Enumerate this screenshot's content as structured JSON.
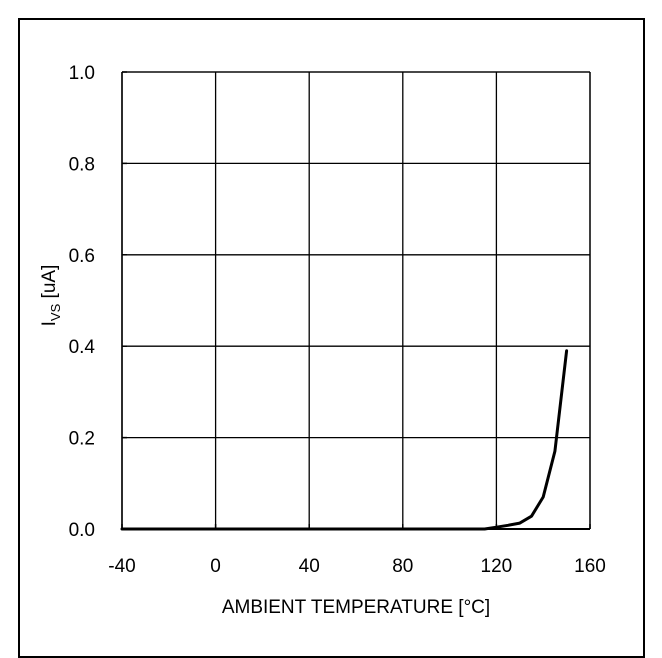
{
  "chart_data": {
    "type": "line",
    "xlabel": "AMBIENT TEMPERATURE [°C]",
    "ylabel_main": "I",
    "ylabel_sub": "VS",
    "ylabel_unit": " [uA]",
    "xlim": [
      -40,
      160
    ],
    "ylim": [
      0,
      1.0
    ],
    "x_ticks": [
      -40,
      0,
      40,
      80,
      120,
      160
    ],
    "x_tick_labels": [
      "-40",
      "0",
      "40",
      "80",
      "120",
      "160"
    ],
    "y_ticks": [
      0,
      0.2,
      0.4,
      0.6,
      0.8,
      1.0
    ],
    "y_tick_labels": [
      "0.0",
      "0.2",
      "0.4",
      "0.6",
      "0.8",
      "1.0"
    ],
    "grid": true,
    "series": [
      {
        "x": [
          -40,
          0,
          40,
          80,
          110,
          115,
          120,
          125,
          130,
          135,
          140,
          145,
          150
        ],
        "y": [
          0.0,
          0.0,
          0.0,
          0.0,
          0.0,
          0.0,
          0.004,
          0.008,
          0.013,
          0.028,
          0.07,
          0.17,
          0.39
        ]
      }
    ],
    "line_color": "#000000"
  }
}
